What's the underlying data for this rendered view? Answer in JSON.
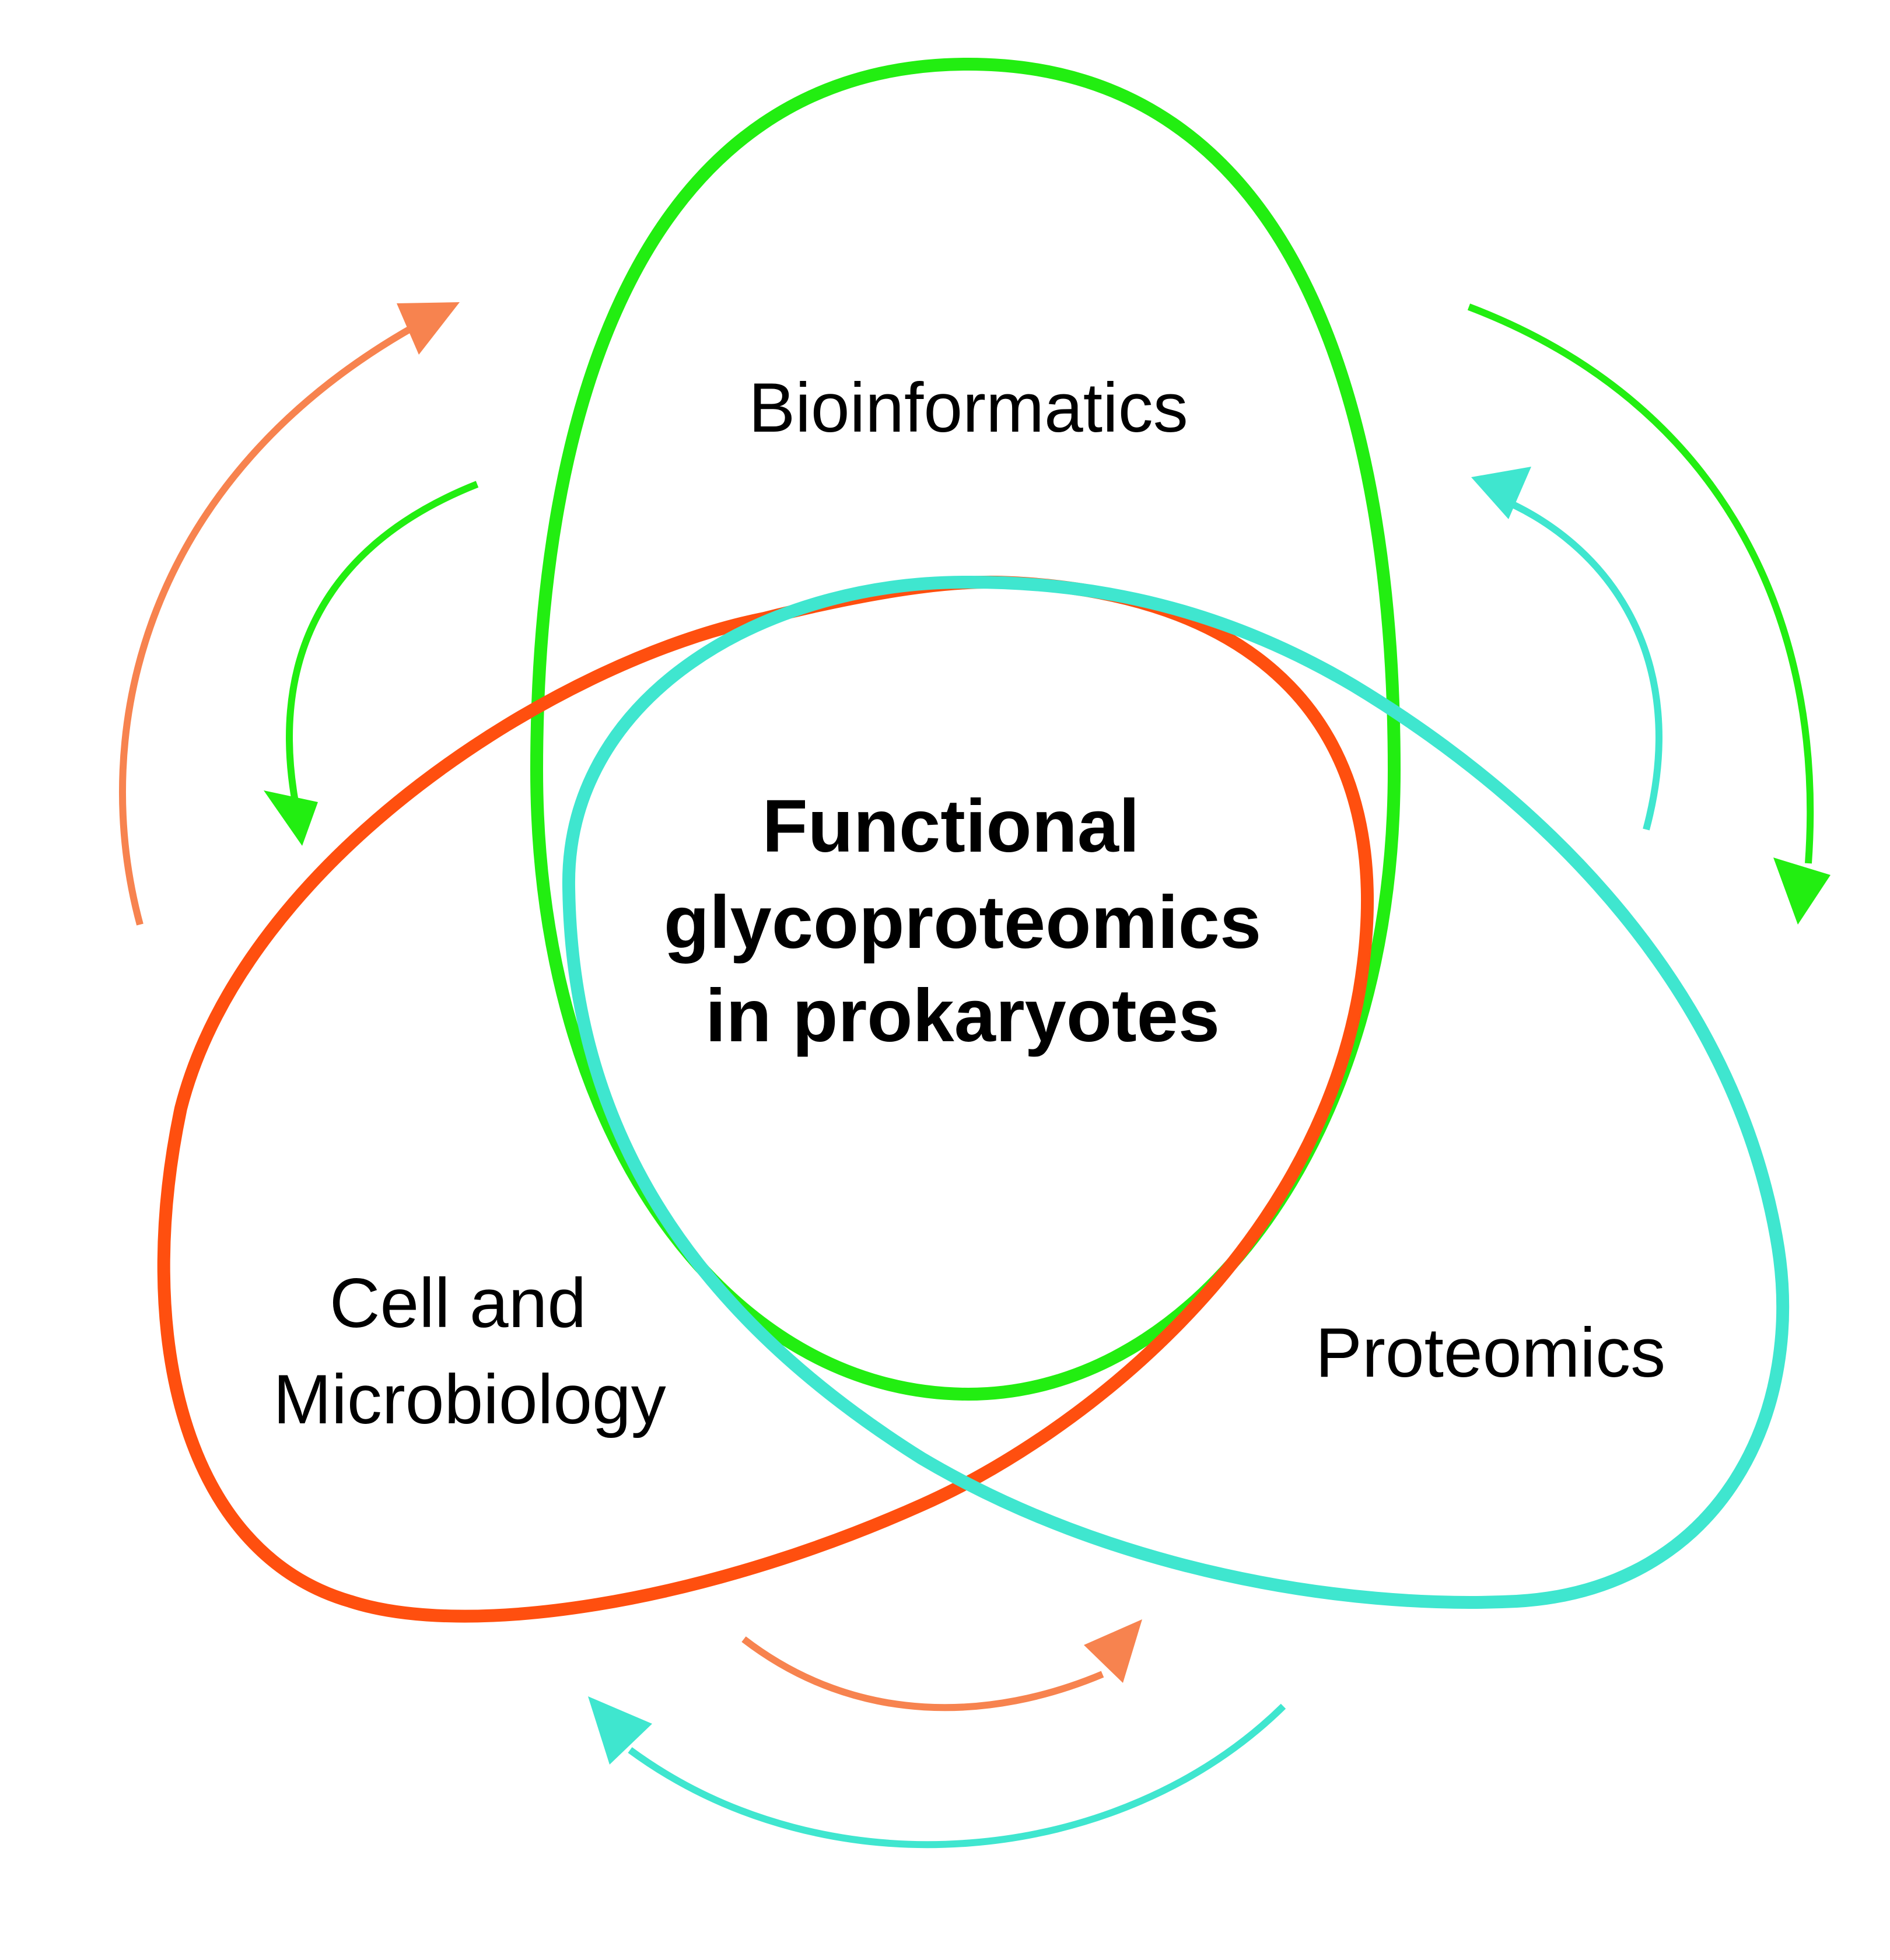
{
  "colors": {
    "bioinformatics": "#22ee11",
    "cell_microbiology": "#ff4f0f",
    "proteomics": "#3fe6cf",
    "arrow_orange": "#f7834f",
    "arrow_green": "#22ee11",
    "arrow_cyan": "#3fe6cf",
    "text": "#000000"
  },
  "labels": {
    "bioinformatics": "Bioinformatics",
    "cell_line1": "Cell and",
    "cell_line2": "Microbiology",
    "proteomics": "Proteomics",
    "center_line1": "Functional",
    "center_line2": "glycoproteomics",
    "center_line3": "in prokaryotes"
  },
  "icons": {
    "arrows": "curved-arrow-icon"
  }
}
